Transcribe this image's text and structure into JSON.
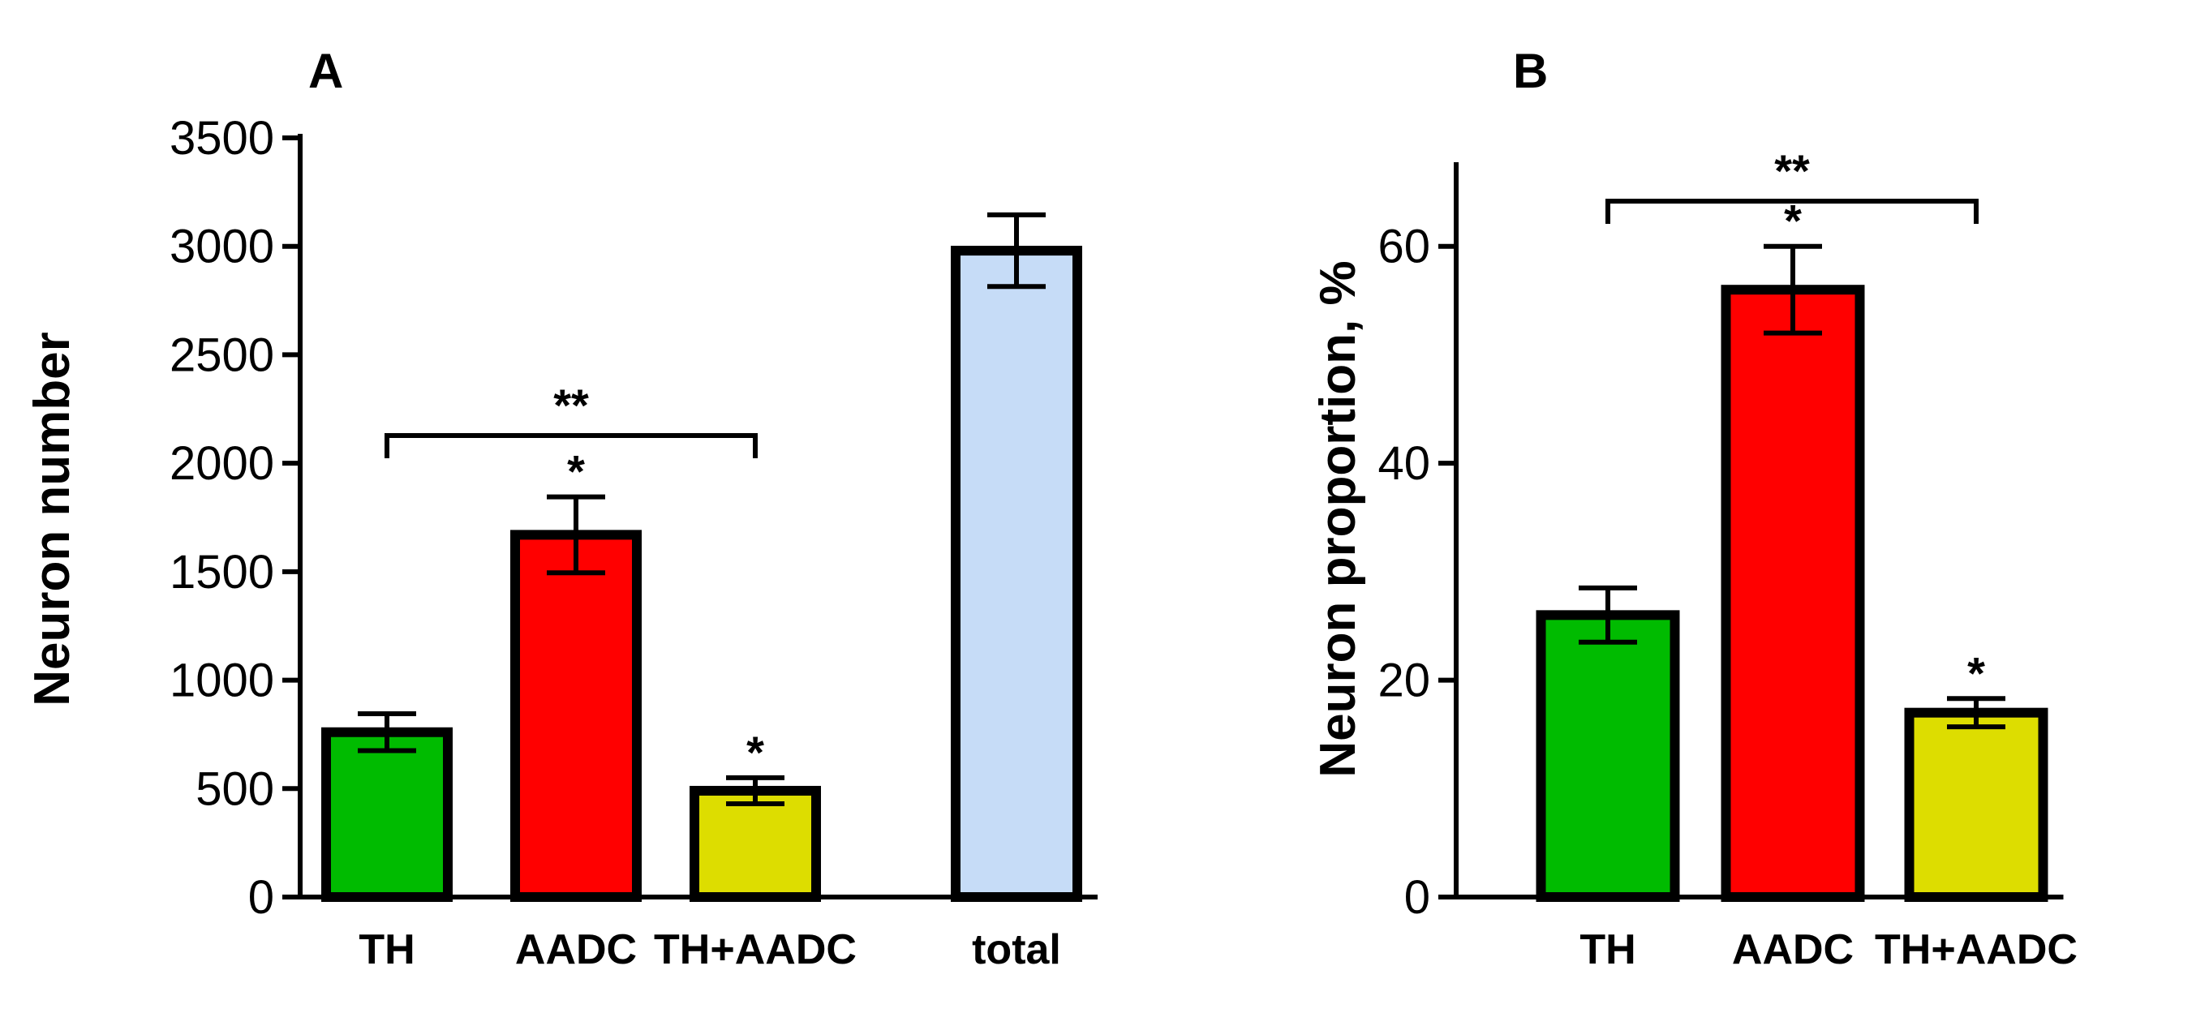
{
  "chart_data": [
    {
      "type": "bar",
      "panel": "A",
      "ylabel": "Neuron number",
      "ylim": [
        0,
        3500
      ],
      "yticks": [
        0,
        500,
        1000,
        1500,
        2000,
        2500,
        3000,
        3500
      ],
      "categories": [
        "TH",
        "AADC",
        "TH+AADC",
        "total"
      ],
      "values": [
        760,
        1670,
        490,
        2980
      ],
      "errors": [
        85,
        175,
        60,
        165
      ],
      "colors": [
        "#00bb00",
        "#ff0000",
        "#dddd00",
        "#c6dcf7"
      ],
      "significance": [
        "",
        "*",
        "*",
        ""
      ],
      "bracket": {
        "from": 0,
        "to": 2,
        "label": "**"
      }
    },
    {
      "type": "bar",
      "panel": "B",
      "ylabel": "Neuron proportion, %",
      "ylim": [
        0,
        70
      ],
      "yticks": [
        0,
        20,
        40,
        60
      ],
      "categories": [
        "TH",
        "AADC",
        "TH+AADC"
      ],
      "values": [
        26,
        56,
        17
      ],
      "errors": [
        2.5,
        4,
        1.3
      ],
      "colors": [
        "#00bb00",
        "#ff0000",
        "#dddd00"
      ],
      "significance": [
        "",
        "*",
        "*"
      ],
      "bracket": {
        "from": 0,
        "to": 2,
        "label": "**"
      }
    }
  ]
}
